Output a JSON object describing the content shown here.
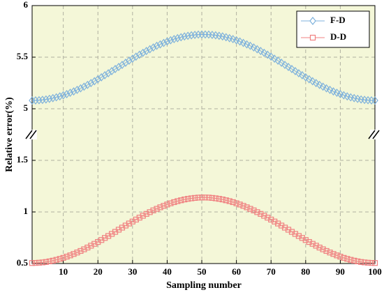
{
  "chart_data": {
    "type": "line",
    "xlabel": "Sampling number",
    "ylabel": "Relative error(%)",
    "x": [
      1,
      2,
      3,
      4,
      5,
      6,
      7,
      8,
      9,
      10,
      11,
      12,
      13,
      14,
      15,
      16,
      17,
      18,
      19,
      20,
      21,
      22,
      23,
      24,
      25,
      26,
      27,
      28,
      29,
      30,
      31,
      32,
      33,
      34,
      35,
      36,
      37,
      38,
      39,
      40,
      41,
      42,
      43,
      44,
      45,
      46,
      47,
      48,
      49,
      50,
      51,
      52,
      53,
      54,
      55,
      56,
      57,
      58,
      59,
      60,
      61,
      62,
      63,
      64,
      65,
      66,
      67,
      68,
      69,
      70,
      71,
      72,
      73,
      74,
      75,
      76,
      77,
      78,
      79,
      80,
      81,
      82,
      83,
      84,
      85,
      86,
      87,
      88,
      89,
      90,
      91,
      92,
      93,
      94,
      95,
      96,
      97,
      98,
      99,
      100
    ],
    "series": [
      {
        "name": "F-D",
        "color": "#7fb2dc",
        "marker": "diamond",
        "values": [
          5.08,
          5.081,
          5.083,
          5.086,
          5.09,
          5.096,
          5.103,
          5.111,
          5.12,
          5.131,
          5.142,
          5.155,
          5.168,
          5.183,
          5.198,
          5.214,
          5.231,
          5.249,
          5.267,
          5.286,
          5.305,
          5.325,
          5.344,
          5.365,
          5.385,
          5.405,
          5.425,
          5.446,
          5.466,
          5.485,
          5.505,
          5.524,
          5.542,
          5.56,
          5.577,
          5.594,
          5.61,
          5.624,
          5.638,
          5.652,
          5.664,
          5.675,
          5.684,
          5.693,
          5.701,
          5.707,
          5.712,
          5.716,
          5.719,
          5.72,
          5.72,
          5.719,
          5.716,
          5.712,
          5.707,
          5.701,
          5.693,
          5.684,
          5.675,
          5.664,
          5.652,
          5.638,
          5.624,
          5.61,
          5.594,
          5.577,
          5.56,
          5.542,
          5.524,
          5.505,
          5.485,
          5.466,
          5.446,
          5.425,
          5.405,
          5.385,
          5.365,
          5.344,
          5.325,
          5.305,
          5.286,
          5.267,
          5.249,
          5.231,
          5.214,
          5.198,
          5.183,
          5.168,
          5.155,
          5.142,
          5.131,
          5.12,
          5.111,
          5.103,
          5.096,
          5.09,
          5.086,
          5.083,
          5.081,
          5.08
        ]
      },
      {
        "name": "D-D",
        "color": "#f08080",
        "marker": "square",
        "values": [
          0.505,
          0.506,
          0.508,
          0.511,
          0.515,
          0.521,
          0.528,
          0.536,
          0.545,
          0.555,
          0.567,
          0.579,
          0.593,
          0.607,
          0.622,
          0.638,
          0.655,
          0.673,
          0.691,
          0.709,
          0.728,
          0.748,
          0.767,
          0.787,
          0.807,
          0.828,
          0.848,
          0.868,
          0.888,
          0.907,
          0.926,
          0.945,
          0.963,
          0.981,
          0.998,
          1.015,
          1.03,
          1.045,
          1.059,
          1.072,
          1.084,
          1.095,
          1.105,
          1.113,
          1.121,
          1.127,
          1.132,
          1.136,
          1.139,
          1.14,
          1.14,
          1.139,
          1.136,
          1.132,
          1.127,
          1.121,
          1.113,
          1.105,
          1.095,
          1.084,
          1.072,
          1.059,
          1.045,
          1.03,
          1.015,
          0.998,
          0.981,
          0.963,
          0.945,
          0.926,
          0.907,
          0.888,
          0.868,
          0.848,
          0.828,
          0.807,
          0.787,
          0.767,
          0.748,
          0.728,
          0.709,
          0.691,
          0.673,
          0.655,
          0.638,
          0.622,
          0.607,
          0.593,
          0.579,
          0.567,
          0.555,
          0.545,
          0.536,
          0.528,
          0.521,
          0.515,
          0.511,
          0.508,
          0.506,
          0.505
        ]
      }
    ],
    "xlim": [
      1,
      100
    ],
    "xticks": [
      10,
      20,
      30,
      40,
      50,
      60,
      70,
      80,
      90,
      100
    ],
    "ylim_lower": [
      0.5,
      1.75
    ],
    "ylim_upper": [
      4.75,
      6
    ],
    "yticks": [
      0.5,
      1,
      1.5,
      5,
      5.5,
      6
    ],
    "grid": true,
    "legend": "upper right"
  }
}
